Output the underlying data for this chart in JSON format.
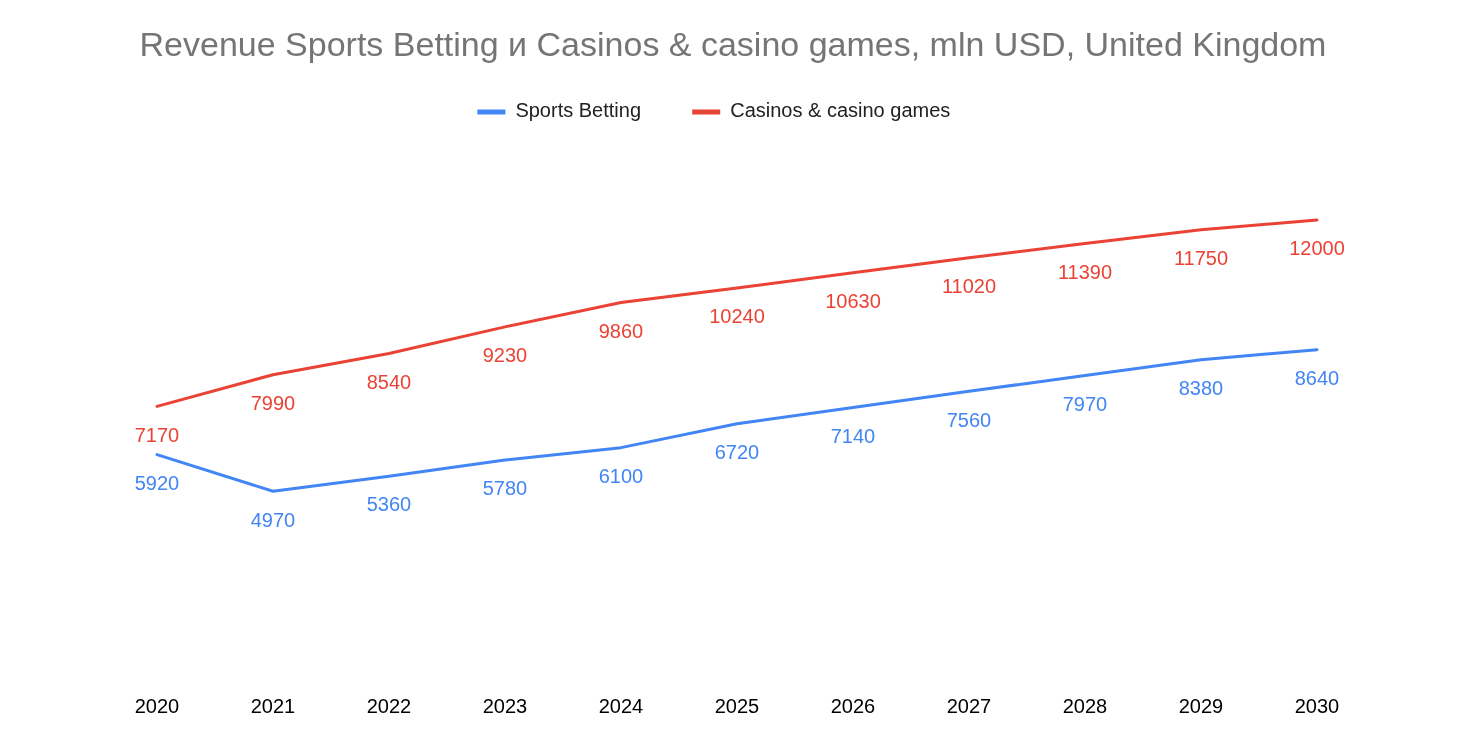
{
  "chart_data": {
    "type": "line",
    "title": "Revenue Sports Betting и Casinos & casino games, mln USD, United Kingdom",
    "categories": [
      "2020",
      "2021",
      "2022",
      "2023",
      "2024",
      "2025",
      "2026",
      "2027",
      "2028",
      "2029",
      "2030"
    ],
    "series": [
      {
        "name": "Sports Betting",
        "color": "#4285f4",
        "values": [
          5920,
          4970,
          5360,
          5780,
          6100,
          6720,
          7140,
          7560,
          7970,
          8380,
          8640
        ]
      },
      {
        "name": "Casinos & casino games",
        "color": "#ea4335",
        "values": [
          7170,
          7990,
          8540,
          9230,
          9860,
          10240,
          10630,
          11020,
          11390,
          11750,
          12000
        ]
      }
    ],
    "data_labels": true,
    "legend": "top"
  }
}
